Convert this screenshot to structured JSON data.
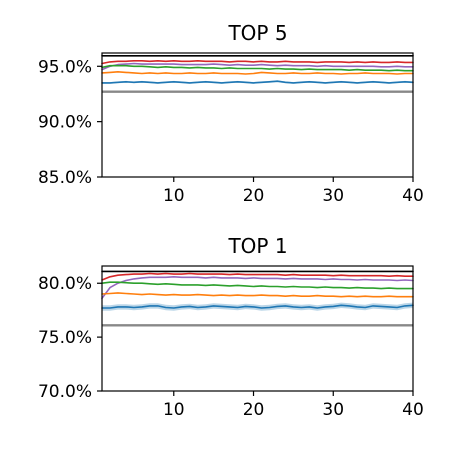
{
  "chart_data": [
    {
      "type": "line",
      "title": "TOP 5",
      "xlabel": "",
      "ylabel": "",
      "xlim": [
        1,
        40
      ],
      "ylim": [
        85.0,
        96.2
      ],
      "xticks": [
        10,
        20,
        30,
        40
      ],
      "xtick_labels": [
        "10",
        "20",
        "30",
        "40"
      ],
      "yticks": [
        85.0,
        90.0,
        95.0
      ],
      "ytick_labels": [
        "85.0%",
        "90.0%",
        "95.0%"
      ],
      "grid": false,
      "series": [
        {
          "color": "#000000",
          "values": [
            95.95,
            95.95,
            95.95,
            95.95,
            95.95,
            95.95,
            95.95,
            95.95,
            95.95,
            95.95,
            95.95,
            95.95,
            95.95,
            95.95,
            95.95,
            95.95,
            95.95,
            95.95,
            95.95,
            95.95,
            95.95,
            95.95,
            95.95,
            95.95,
            95.95,
            95.95,
            95.95,
            95.95,
            95.95,
            95.95,
            95.95,
            95.95,
            95.95,
            95.95,
            95.95,
            95.95,
            95.95,
            95.95,
            95.95,
            95.95
          ]
        },
        {
          "color": "#d62728",
          "values": [
            95.25,
            95.4,
            95.45,
            95.45,
            95.5,
            95.5,
            95.45,
            95.5,
            95.45,
            95.5,
            95.45,
            95.45,
            95.5,
            95.45,
            95.45,
            95.45,
            95.4,
            95.45,
            95.45,
            95.4,
            95.45,
            95.4,
            95.4,
            95.45,
            95.4,
            95.4,
            95.4,
            95.35,
            95.4,
            95.4,
            95.4,
            95.35,
            95.4,
            95.35,
            95.4,
            95.35,
            95.35,
            95.4,
            95.35,
            95.35
          ]
        },
        {
          "color": "#9467bd",
          "values": [
            94.7,
            95.0,
            95.15,
            95.2,
            95.25,
            95.2,
            95.2,
            95.2,
            95.2,
            95.2,
            95.15,
            95.15,
            95.15,
            95.15,
            95.2,
            95.15,
            95.1,
            95.15,
            95.1,
            95.1,
            95.15,
            95.1,
            95.05,
            95.1,
            95.05,
            95.05,
            95.05,
            95.0,
            95.05,
            95.0,
            95.0,
            95.0,
            95.0,
            95.0,
            95.0,
            94.95,
            94.95,
            95.0,
            94.95,
            94.95
          ]
        },
        {
          "color": "#2ca02c",
          "values": [
            94.9,
            95.05,
            95.05,
            95.05,
            95.0,
            95.0,
            94.95,
            94.9,
            94.95,
            94.9,
            94.9,
            94.85,
            94.9,
            94.85,
            94.85,
            94.8,
            94.85,
            94.8,
            94.8,
            94.8,
            94.8,
            94.75,
            94.8,
            94.75,
            94.75,
            94.7,
            94.75,
            94.7,
            94.7,
            94.7,
            94.7,
            94.65,
            94.7,
            94.65,
            94.65,
            94.65,
            94.6,
            94.65,
            94.6,
            94.6
          ]
        },
        {
          "color": "#ff7f0e",
          "values": [
            94.4,
            94.45,
            94.5,
            94.45,
            94.4,
            94.35,
            94.4,
            94.35,
            94.4,
            94.35,
            94.35,
            94.4,
            94.35,
            94.35,
            94.4,
            94.35,
            94.35,
            94.35,
            94.3,
            94.35,
            94.45,
            94.4,
            94.35,
            94.35,
            94.4,
            94.35,
            94.35,
            94.4,
            94.35,
            94.35,
            94.3,
            94.35,
            94.35,
            94.4,
            94.35,
            94.35,
            94.35,
            94.3,
            94.35,
            94.35
          ]
        },
        {
          "color": "#1f77b4",
          "band": 0.08,
          "values": [
            93.5,
            93.5,
            93.55,
            93.6,
            93.55,
            93.6,
            93.55,
            93.5,
            93.55,
            93.6,
            93.55,
            93.5,
            93.55,
            93.6,
            93.55,
            93.5,
            93.55,
            93.6,
            93.55,
            93.5,
            93.55,
            93.6,
            93.65,
            93.55,
            93.5,
            93.55,
            93.6,
            93.55,
            93.5,
            93.55,
            93.6,
            93.55,
            93.5,
            93.55,
            93.6,
            93.55,
            93.5,
            93.55,
            93.6,
            93.55
          ]
        },
        {
          "color": "#888888",
          "reference": true,
          "values": [
            92.7,
            92.7
          ]
        }
      ]
    },
    {
      "type": "line",
      "title": "TOP 1",
      "xlabel": "",
      "ylabel": "",
      "xlim": [
        1,
        40
      ],
      "ylim": [
        70.0,
        81.6
      ],
      "xticks": [
        10,
        20,
        30,
        40
      ],
      "xtick_labels": [
        "10",
        "20",
        "30",
        "40"
      ],
      "yticks": [
        70.0,
        75.0,
        80.0
      ],
      "ytick_labels": [
        "70.0%",
        "75.0%",
        "80.0%"
      ],
      "grid": false,
      "series": [
        {
          "color": "#000000",
          "values": [
            81.1,
            81.1,
            81.1,
            81.1,
            81.1,
            81.1,
            81.1,
            81.1,
            81.1,
            81.1,
            81.1,
            81.1,
            81.1,
            81.1,
            81.1,
            81.1,
            81.1,
            81.1,
            81.1,
            81.1,
            81.1,
            81.1,
            81.1,
            81.1,
            81.1,
            81.1,
            81.1,
            81.1,
            81.1,
            81.1,
            81.1,
            81.1,
            81.1,
            81.1,
            81.1,
            81.1,
            81.1,
            81.1,
            81.1,
            81.1
          ]
        },
        {
          "color": "#d62728",
          "values": [
            80.3,
            80.6,
            80.75,
            80.8,
            80.85,
            80.85,
            80.9,
            80.85,
            80.9,
            80.85,
            80.85,
            80.9,
            80.85,
            80.85,
            80.85,
            80.85,
            80.8,
            80.85,
            80.8,
            80.8,
            80.8,
            80.8,
            80.8,
            80.75,
            80.8,
            80.75,
            80.75,
            80.75,
            80.75,
            80.7,
            80.75,
            80.7,
            80.7,
            80.7,
            80.7,
            80.7,
            80.65,
            80.7,
            80.65,
            80.65
          ]
        },
        {
          "color": "#9467bd",
          "values": [
            78.6,
            79.6,
            80.0,
            80.25,
            80.4,
            80.5,
            80.55,
            80.55,
            80.55,
            80.6,
            80.55,
            80.55,
            80.55,
            80.5,
            80.55,
            80.5,
            80.5,
            80.5,
            80.45,
            80.5,
            80.45,
            80.45,
            80.45,
            80.4,
            80.45,
            80.4,
            80.4,
            80.4,
            80.35,
            80.4,
            80.35,
            80.35,
            80.3,
            80.35,
            80.3,
            80.3,
            80.3,
            80.25,
            80.3,
            80.25
          ]
        },
        {
          "color": "#2ca02c",
          "values": [
            80.0,
            80.1,
            80.1,
            80.05,
            80.0,
            80.0,
            79.95,
            79.9,
            79.95,
            79.9,
            79.85,
            79.85,
            79.85,
            79.8,
            79.85,
            79.8,
            79.75,
            79.8,
            79.75,
            79.7,
            79.75,
            79.7,
            79.7,
            79.65,
            79.7,
            79.65,
            79.65,
            79.6,
            79.65,
            79.6,
            79.6,
            79.55,
            79.6,
            79.55,
            79.55,
            79.5,
            79.55,
            79.5,
            79.5,
            79.5
          ]
        },
        {
          "color": "#ff7f0e",
          "values": [
            79.0,
            79.05,
            79.1,
            79.05,
            79.0,
            78.95,
            79.0,
            78.95,
            78.9,
            78.95,
            78.9,
            78.9,
            78.95,
            78.9,
            78.85,
            78.9,
            78.85,
            78.9,
            78.85,
            78.85,
            78.9,
            78.85,
            78.85,
            78.8,
            78.85,
            78.8,
            78.8,
            78.85,
            78.8,
            78.8,
            78.75,
            78.8,
            78.75,
            78.8,
            78.75,
            78.75,
            78.8,
            78.75,
            78.75,
            78.75
          ]
        },
        {
          "color": "#1f77b4",
          "band": 0.25,
          "values": [
            77.7,
            77.7,
            77.8,
            77.8,
            77.75,
            77.8,
            77.9,
            77.9,
            77.75,
            77.7,
            77.8,
            77.85,
            77.75,
            77.8,
            77.9,
            77.85,
            77.8,
            77.75,
            77.85,
            77.8,
            77.7,
            77.75,
            77.85,
            77.9,
            77.8,
            77.75,
            77.8,
            77.7,
            77.8,
            77.85,
            77.95,
            77.9,
            77.8,
            77.75,
            77.9,
            77.85,
            77.8,
            77.75,
            77.9,
            77.95
          ]
        },
        {
          "color": "#888888",
          "reference": true,
          "values": [
            76.1,
            76.1
          ]
        }
      ]
    }
  ]
}
